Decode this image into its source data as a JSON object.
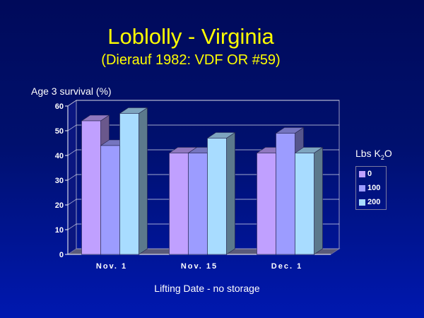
{
  "chart_data": {
    "type": "bar",
    "title": "Loblolly - Virginia",
    "subtitle": "(Dierauf 1982: VDF OR #59)",
    "ylabel": "Age 3 survival (%)",
    "xlabel": "Lifting Date - no storage",
    "categories": [
      "Nov. 1",
      "Nov. 15",
      "Dec. 1"
    ],
    "ylim": [
      0,
      60
    ],
    "yticks": [
      0,
      10,
      20,
      30,
      40,
      50,
      60
    ],
    "grid": true,
    "legend_position": "right",
    "legend_title": {
      "base": "Lbs K",
      "sub": "2",
      "tail": "O"
    },
    "series": [
      {
        "name": "0",
        "values": [
          54,
          41,
          41
        ],
        "color": "#c0a0ff"
      },
      {
        "name": "100",
        "values": [
          44,
          41,
          49
        ],
        "color": "#9c9cff"
      },
      {
        "name": "200",
        "values": [
          57,
          47,
          41
        ],
        "color": "#a8dcff"
      }
    ]
  }
}
